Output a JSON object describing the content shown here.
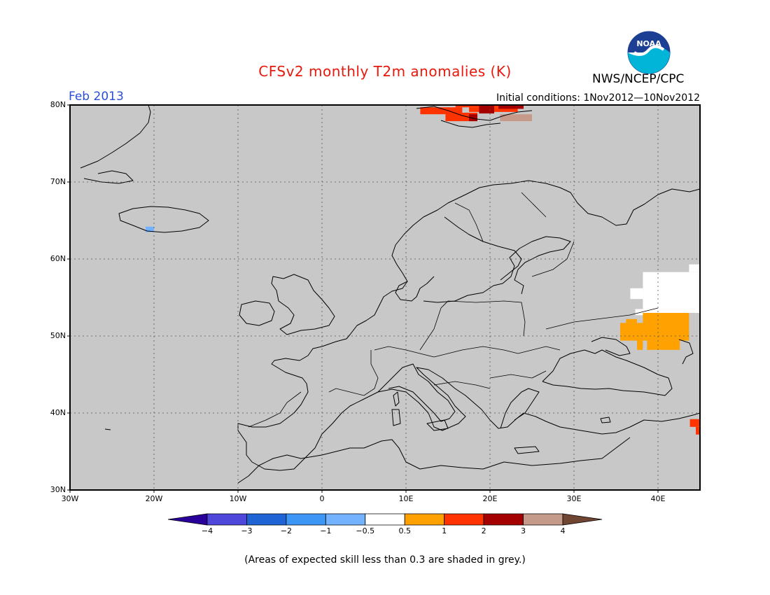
{
  "title": "CFSv2 monthly T2m anomalies (K)",
  "month": "Feb 2013",
  "initial_conditions": "Initial conditions: 1Nov2012—10Nov2012",
  "agency": "NWS/NCEP/CPC",
  "logo_text": "NOAA",
  "note": "(Areas of expected skill less than 0.3 are shaded in grey.)",
  "map": {
    "projection": "lat-lon",
    "lon_range": [
      -30,
      45
    ],
    "lat_range": [
      30,
      80
    ],
    "grid": true,
    "background_color": "#c8c8c8",
    "lat_labels": [
      {
        "lat": 80,
        "text": "80N"
      },
      {
        "lat": 70,
        "text": "70N"
      },
      {
        "lat": 60,
        "text": "60N"
      },
      {
        "lat": 50,
        "text": "50N"
      },
      {
        "lat": 40,
        "text": "40N"
      },
      {
        "lat": 30,
        "text": "30N"
      }
    ],
    "lon_labels": [
      {
        "lon": -30,
        "text": "30W"
      },
      {
        "lon": -20,
        "text": "20W"
      },
      {
        "lon": -10,
        "text": "10W"
      },
      {
        "lon": 0,
        "text": "0"
      },
      {
        "lon": 10,
        "text": "10E"
      },
      {
        "lon": 20,
        "text": "20E"
      },
      {
        "lon": 30,
        "text": "30E"
      },
      {
        "lon": 40,
        "text": "40E"
      }
    ]
  },
  "anomaly_areas": [
    {
      "name": "svalbard-warm-1",
      "color": "#ff3300",
      "lon": [
        11.7,
        16.7
      ],
      "lat": [
        78.8,
        79.7
      ]
    },
    {
      "name": "svalbard-warm-2",
      "color": "#ff3300",
      "lon": [
        15.9,
        22.5
      ],
      "lat": [
        79.7,
        80
      ]
    },
    {
      "name": "svalbard-warm-3",
      "color": "#ff3300",
      "lon": [
        17.5,
        23.3
      ],
      "lat": [
        79.1,
        79.7
      ]
    },
    {
      "name": "svalbard-warm-4",
      "color": "#ff3300",
      "lon": [
        14.7,
        18.5
      ],
      "lat": [
        77.9,
        79.0
      ]
    },
    {
      "name": "svalbard-hot-1",
      "color": "#a50000",
      "lon": [
        18.7,
        20.5
      ],
      "lat": [
        78.9,
        80
      ]
    },
    {
      "name": "svalbard-hot-2",
      "color": "#a50000",
      "lon": [
        21,
        24
      ],
      "lat": [
        79.5,
        80
      ]
    },
    {
      "name": "svalbard-hot-3",
      "color": "#a50000",
      "lon": [
        17.5,
        18.5
      ],
      "lat": [
        77.9,
        78.8
      ]
    },
    {
      "name": "svalbard-vhot",
      "color": "#c59a8a",
      "lon": [
        21.2,
        25
      ],
      "lat": [
        77.9,
        78.8
      ]
    },
    {
      "name": "iceland-cool",
      "color": "#73b2ff",
      "lon": [
        -21,
        -20
      ],
      "lat": [
        63.5,
        64.2
      ]
    },
    {
      "name": "russia-neutral-1",
      "color": "#ffffff",
      "lon": [
        38.2,
        45
      ],
      "lat": [
        53,
        58.3
      ]
    },
    {
      "name": "russia-neutral-2",
      "color": "#ffffff",
      "lon": [
        43.7,
        45
      ],
      "lat": [
        58.3,
        59.3
      ]
    },
    {
      "name": "russia-neutral-3",
      "color": "#ffffff",
      "lon": [
        36.7,
        38.2
      ],
      "lat": [
        54.8,
        56.2
      ]
    },
    {
      "name": "russia-neutral-4",
      "color": "#ffffff",
      "lon": [
        37.3,
        38.2
      ],
      "lat": [
        52.7,
        53.5
      ]
    },
    {
      "name": "russia-warm-1",
      "color": "#ffa100",
      "lon": [
        38.2,
        43.7
      ],
      "lat": [
        49.4,
        53
      ]
    },
    {
      "name": "russia-warm-2",
      "color": "#ffa100",
      "lon": [
        37.5,
        38.2
      ],
      "lat": [
        48.2,
        51.7
      ]
    },
    {
      "name": "russia-warm-3",
      "color": "#ffa100",
      "lon": [
        35.5,
        37.5
      ],
      "lat": [
        49.4,
        51.7
      ]
    },
    {
      "name": "russia-warm-4",
      "color": "#ffa100",
      "lon": [
        38.7,
        42.6
      ],
      "lat": [
        48.2,
        49.4
      ]
    },
    {
      "name": "russia-warm-5",
      "color": "#ffa100",
      "lon": [
        36.2,
        37.5
      ],
      "lat": [
        51.7,
        52.2
      ]
    },
    {
      "name": "caucasus-warm",
      "color": "#ff3300",
      "lon": [
        43.8,
        45
      ],
      "lat": [
        38.2,
        39.2
      ]
    },
    {
      "name": "caucasus-warm-2",
      "color": "#ff3300",
      "lon": [
        44.5,
        45
      ],
      "lat": [
        37.2,
        38.2
      ]
    }
  ],
  "colorbar": {
    "colors": [
      "#2a009a",
      "#4e47d9",
      "#1e64d4",
      "#3c96f5",
      "#73b2ff",
      "#ffffff",
      "#ffa100",
      "#ff3300",
      "#a50000",
      "#c59a8a",
      "#704532"
    ],
    "labels": [
      "−4",
      "−3",
      "−2",
      "−1",
      "−0.5",
      "0.5",
      "1",
      "2",
      "3",
      "4"
    ]
  }
}
